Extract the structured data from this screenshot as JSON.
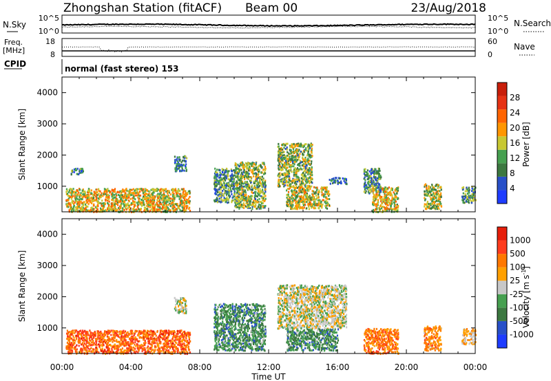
{
  "header": {
    "station": "Zhongshan Station (fitACF)",
    "beam": "Beam 00",
    "date": "23/Aug/2018"
  },
  "noise_panel": {
    "left_label": "N.Sky",
    "right_label": "N.Search",
    "left_ticks": [
      "10^5",
      "10^0"
    ],
    "right_ticks": [
      "10^5",
      "10^0"
    ]
  },
  "freq_panel": {
    "left_label_1": "Freq.",
    "left_label_2": "[MHz]",
    "left_ticks": [
      "18",
      "8"
    ],
    "right_label": "Nave",
    "right_ticks": [
      "60",
      "0"
    ]
  },
  "cpid": {
    "label": "CPID",
    "text": "normal (fast stereo) 153"
  },
  "xaxis": {
    "label": "Time UT",
    "ticks": [
      "00:00",
      "04:00",
      "08:00",
      "12:00",
      "16:00",
      "20:00",
      "00:00"
    ]
  },
  "yaxis": {
    "label": "Slant Range [km]",
    "ticks": [
      "1000",
      "2000",
      "3000",
      "4000"
    ]
  },
  "chart_data": [
    {
      "type": "heatmap",
      "name": "power",
      "x_range_hours": [
        0,
        24
      ],
      "y_range_km": [
        180,
        4500
      ],
      "colorbar": {
        "label": "Power [dB]",
        "ticks": [
          "4",
          "8",
          "12",
          "16",
          "20",
          "24",
          "28"
        ],
        "range": [
          0,
          30
        ],
        "colors": [
          "#1e3cff",
          "#2850c8",
          "#3c7840",
          "#46a050",
          "#c8c832",
          "#ff9600",
          "#ff6400",
          "#e63214",
          "#c81e0a"
        ]
      },
      "echo_regions": [
        {
          "t0": 0.2,
          "t1": 7.4,
          "r0": 200,
          "r1": 950,
          "level": 0.55
        },
        {
          "t0": 0.5,
          "t1": 1.2,
          "r0": 1400,
          "r1": 1600,
          "level": 0.25
        },
        {
          "t0": 6.5,
          "t1": 7.2,
          "r0": 1500,
          "r1": 2000,
          "level": 0.2
        },
        {
          "t0": 8.8,
          "t1": 10.0,
          "r0": 500,
          "r1": 1600,
          "level": 0.3
        },
        {
          "t0": 10.0,
          "t1": 11.8,
          "r0": 300,
          "r1": 1800,
          "level": 0.4
        },
        {
          "t0": 12.5,
          "t1": 14.5,
          "r0": 1000,
          "r1": 2400,
          "level": 0.4
        },
        {
          "t0": 13.0,
          "t1": 15.5,
          "r0": 300,
          "r1": 1000,
          "level": 0.5
        },
        {
          "t0": 15.5,
          "t1": 16.5,
          "r0": 1100,
          "r1": 1300,
          "level": 0.2
        },
        {
          "t0": 17.5,
          "t1": 18.5,
          "r0": 800,
          "r1": 1600,
          "level": 0.3
        },
        {
          "t0": 18.0,
          "t1": 19.5,
          "r0": 200,
          "r1": 1000,
          "level": 0.55
        },
        {
          "t0": 21.0,
          "t1": 22.0,
          "r0": 300,
          "r1": 1100,
          "level": 0.45
        },
        {
          "t0": 23.2,
          "t1": 24.0,
          "r0": 500,
          "r1": 1000,
          "level": 0.3
        }
      ]
    },
    {
      "type": "heatmap",
      "name": "velocity",
      "x_range_hours": [
        0,
        24
      ],
      "y_range_km": [
        180,
        4500
      ],
      "colorbar": {
        "label": "Velocity [m s",
        "unit_superscript": "-1",
        "unit_close": "]",
        "ticks": [
          "1000",
          "500",
          "100",
          "25",
          "-25",
          "-100",
          "-500",
          "-1000"
        ],
        "colors": [
          "#1e3cff",
          "#2850c8",
          "#3c7840",
          "#46a050",
          "#c8c8c8",
          "#ffa000",
          "#ff7800",
          "#ff3c1e",
          "#e61e0a"
        ]
      },
      "echo_regions": [
        {
          "t0": 0.2,
          "t1": 7.4,
          "r0": 200,
          "r1": 950,
          "level": 0.8
        },
        {
          "t0": 6.5,
          "t1": 7.2,
          "r0": 1500,
          "r1": 2000,
          "level": 0.5
        },
        {
          "t0": 8.8,
          "t1": 11.8,
          "r0": 300,
          "r1": 1800,
          "level": 0.3
        },
        {
          "t0": 12.5,
          "t1": 16.5,
          "r0": 1000,
          "r1": 2400,
          "level": 0.5
        },
        {
          "t0": 13.0,
          "t1": 16.0,
          "r0": 300,
          "r1": 1000,
          "level": 0.3
        },
        {
          "t0": 17.5,
          "t1": 19.5,
          "r0": 200,
          "r1": 1000,
          "level": 0.75
        },
        {
          "t0": 21.0,
          "t1": 22.0,
          "r0": 300,
          "r1": 1100,
          "level": 0.7
        },
        {
          "t0": 23.2,
          "t1": 24.0,
          "r0": 500,
          "r1": 1000,
          "level": 0.6
        }
      ]
    }
  ]
}
